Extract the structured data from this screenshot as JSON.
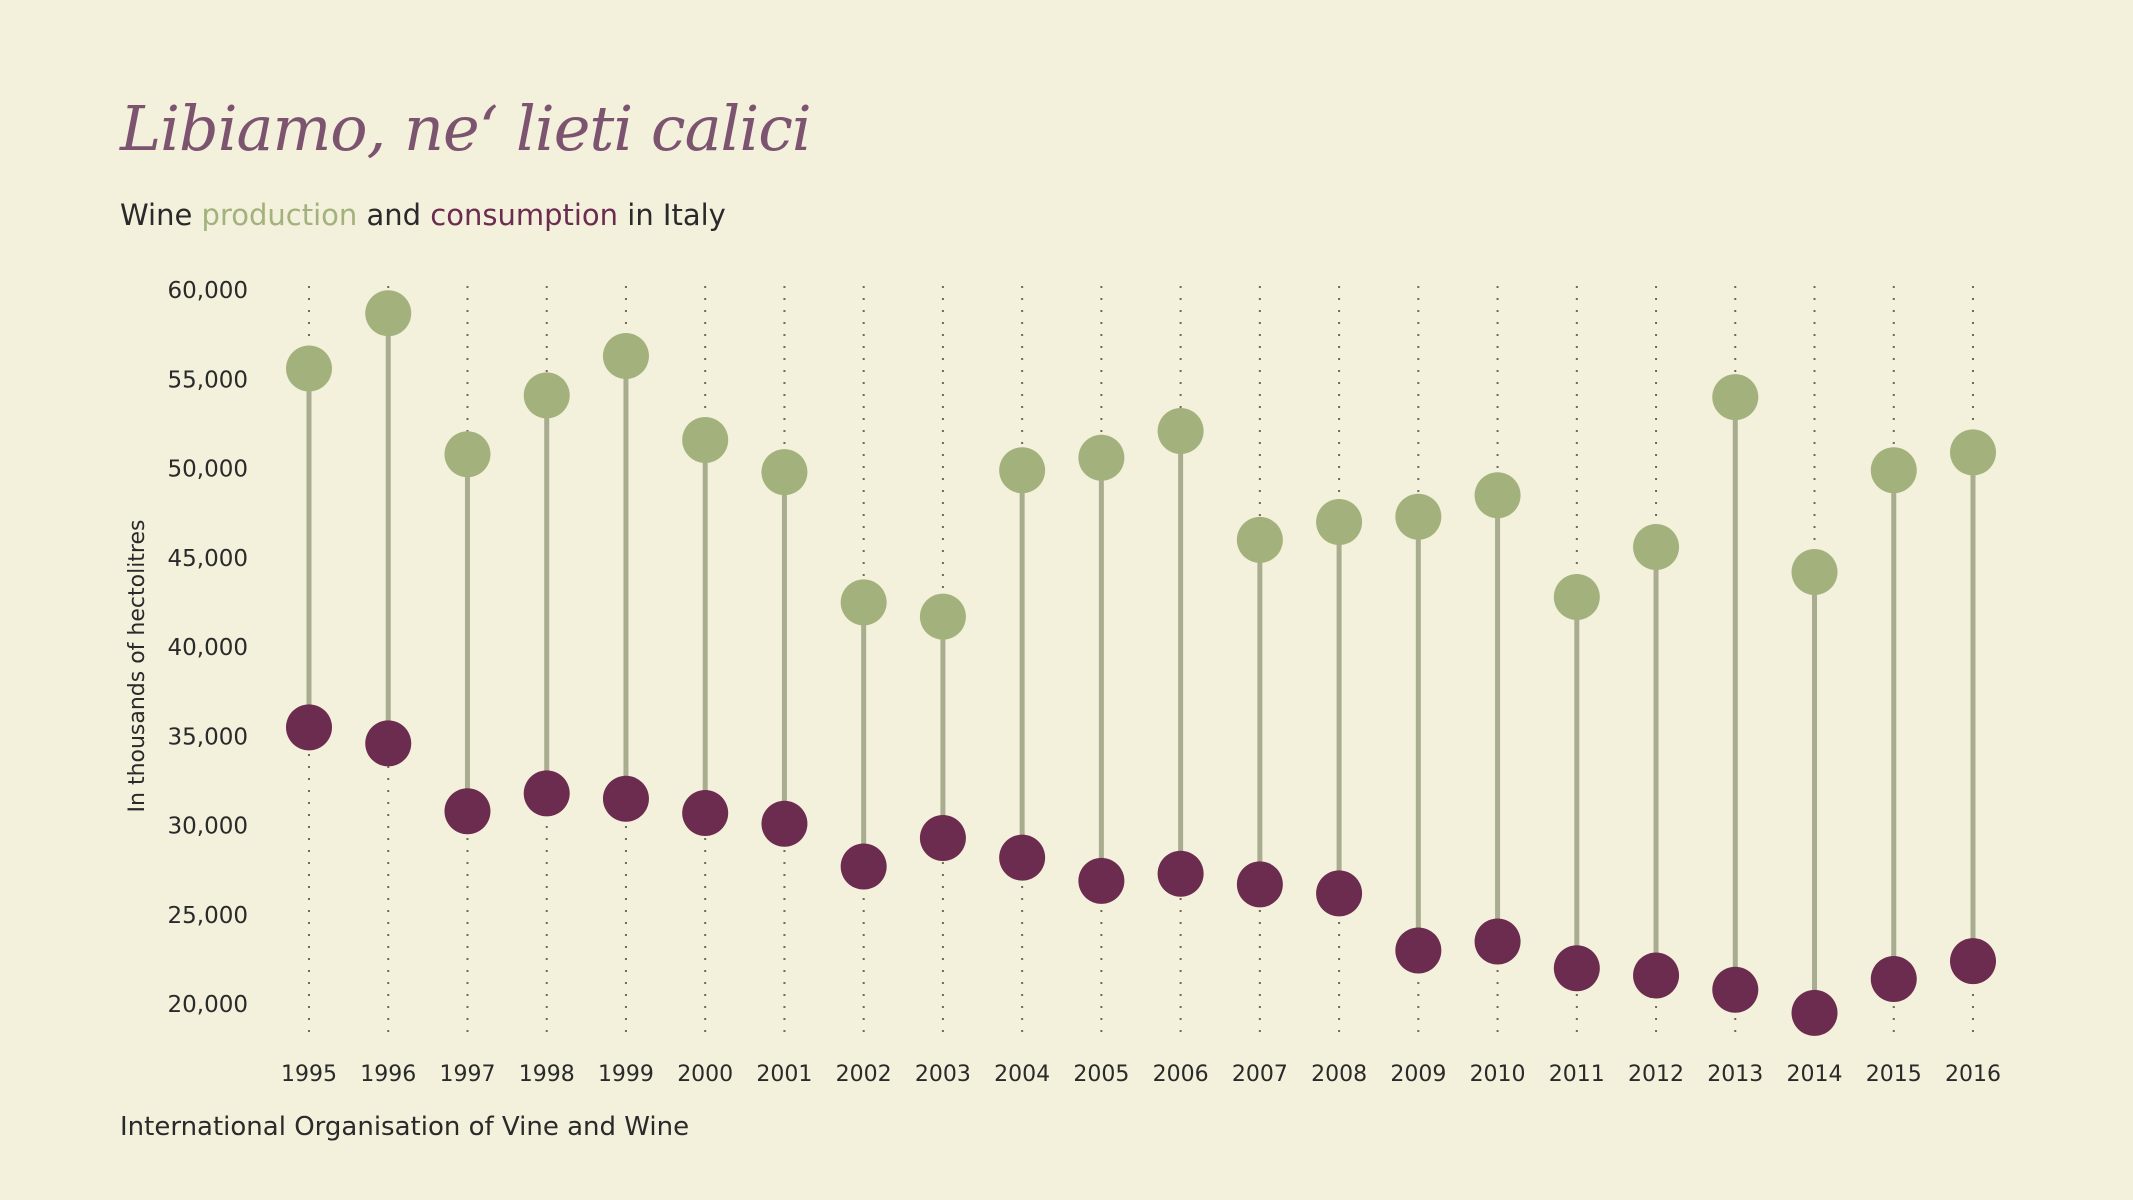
{
  "title": "Libiamo, ne‘ lieti calici",
  "subtitle": {
    "prefix": "Wine ",
    "production": "production",
    "middle": " and ",
    "consumption": "consumption",
    "suffix": " in Italy"
  },
  "source": "International Organisation of Vine and Wine",
  "colors": {
    "background": "#f3f0dc",
    "production": "#a3b27c",
    "consumption": "#6b2c4f",
    "stem": "#a9ad8f",
    "title": "#7c5470"
  },
  "chart_data": {
    "type": "dumbbell",
    "ylabel": "In thousands of hectolitres",
    "ylim": [
      20000,
      60000
    ],
    "yticks": [
      "20,000",
      "25,000",
      "30,000",
      "35,000",
      "40,000",
      "45,000",
      "50,000",
      "55,000",
      "60,000"
    ],
    "categories": [
      "1995",
      "1996",
      "1997",
      "1998",
      "1999",
      "2000",
      "2001",
      "2002",
      "2003",
      "2004",
      "2005",
      "2006",
      "2007",
      "2008",
      "2009",
      "2010",
      "2011",
      "2012",
      "2013",
      "2014",
      "2015",
      "2016"
    ],
    "series": [
      {
        "name": "production",
        "values": [
          55600,
          58700,
          50800,
          54100,
          56300,
          51600,
          49800,
          42500,
          41700,
          49900,
          50600,
          52100,
          46000,
          47000,
          47300,
          48500,
          42800,
          45600,
          54000,
          44200,
          49900,
          50900
        ]
      },
      {
        "name": "consumption",
        "values": [
          35500,
          34600,
          30800,
          31800,
          31500,
          30700,
          30100,
          27700,
          29300,
          28200,
          26900,
          27300,
          26700,
          26200,
          23000,
          23500,
          22000,
          21600,
          20800,
          19500,
          21400,
          22400
        ]
      }
    ],
    "grid": "vertical dotted"
  }
}
